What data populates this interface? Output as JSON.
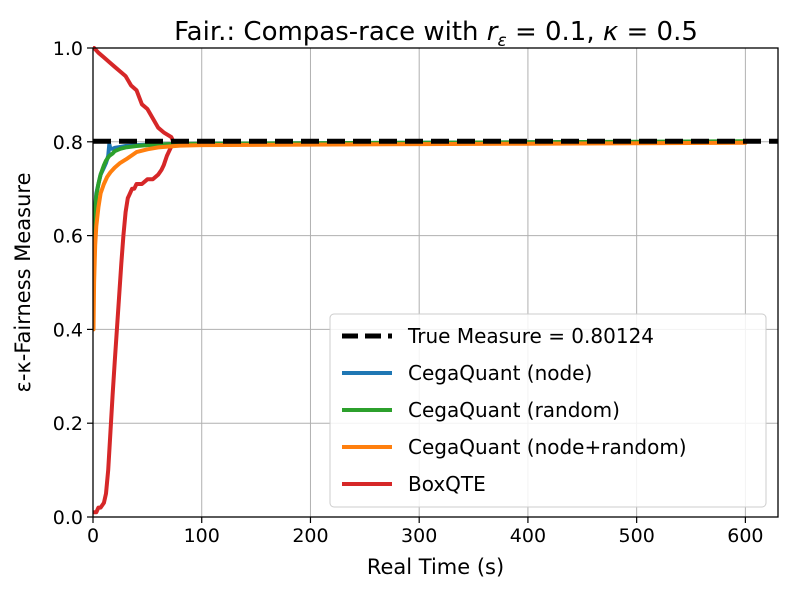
{
  "chart_data": {
    "type": "line",
    "title": "Fair.: Compas-race with r_ε = 0.1, κ = 0.5",
    "title_parts": {
      "prefix": "Fair.: Compas-race with ",
      "var1": "r",
      "var1_sub": "ε",
      "eq1": " = 0.1, ",
      "var2": "κ",
      "eq2": " = 0.5"
    },
    "xlabel": "Real Time (s)",
    "ylabel": "ε-κ-Fairness Measure",
    "xlim": [
      0,
      630
    ],
    "ylim": [
      0.0,
      1.0
    ],
    "x_ticks": [
      0,
      100,
      200,
      300,
      400,
      500,
      600
    ],
    "y_ticks": [
      0.0,
      0.2,
      0.4,
      0.6,
      0.8,
      1.0
    ],
    "x_tick_labels": [
      "0",
      "100",
      "200",
      "300",
      "400",
      "500",
      "600"
    ],
    "y_tick_labels": [
      "0.0",
      "0.2",
      "0.4",
      "0.6",
      "0.8",
      "1.0"
    ],
    "grid": true,
    "legend_position": "lower-right",
    "reference_line": {
      "name": "True Measure = 0.80124",
      "y": 0.80124,
      "color": "#000000",
      "style": "dashed"
    },
    "series": [
      {
        "name": "CegaQuant (node)",
        "color": "#1f77b4",
        "x": [
          0.5,
          1,
          2,
          3,
          5,
          7,
          10,
          12,
          14,
          15,
          16,
          18,
          20,
          25,
          30,
          40,
          50,
          70,
          100,
          200,
          300,
          400,
          500,
          600
        ],
        "y": [
          0.55,
          0.62,
          0.66,
          0.69,
          0.71,
          0.73,
          0.745,
          0.755,
          0.77,
          0.795,
          0.785,
          0.785,
          0.787,
          0.789,
          0.791,
          0.793,
          0.794,
          0.795,
          0.796,
          0.797,
          0.798,
          0.799,
          0.799,
          0.8
        ]
      },
      {
        "name": "CegaQuant (random)",
        "color": "#2ca02c",
        "x": [
          0.5,
          1,
          2,
          3,
          5,
          7,
          10,
          12,
          15,
          18,
          20,
          25,
          30,
          40,
          50,
          70,
          100,
          200,
          300,
          400,
          500,
          600
        ],
        "y": [
          0.55,
          0.61,
          0.655,
          0.685,
          0.71,
          0.73,
          0.75,
          0.76,
          0.77,
          0.775,
          0.78,
          0.785,
          0.788,
          0.791,
          0.793,
          0.795,
          0.796,
          0.797,
          0.798,
          0.799,
          0.8,
          0.801
        ]
      },
      {
        "name": "CegaQuant (node+random)",
        "color": "#ff7f0e",
        "x": [
          0.5,
          1,
          2,
          3,
          5,
          7,
          10,
          13,
          16,
          20,
          25,
          30,
          35,
          40,
          50,
          60,
          70,
          80,
          100,
          200,
          300,
          400,
          500,
          600
        ],
        "y": [
          0.4,
          0.5,
          0.58,
          0.62,
          0.66,
          0.69,
          0.71,
          0.725,
          0.735,
          0.745,
          0.755,
          0.762,
          0.77,
          0.778,
          0.784,
          0.788,
          0.79,
          0.792,
          0.793,
          0.794,
          0.795,
          0.796,
          0.797,
          0.798
        ]
      },
      {
        "name": "BoxQTE",
        "color": "#d62728",
        "x": [
          1,
          3,
          5,
          7,
          10,
          12,
          14,
          16,
          18,
          20,
          22,
          24,
          26,
          28,
          30,
          32,
          34,
          36,
          38,
          40,
          45,
          50,
          55,
          60,
          63,
          65,
          68,
          70,
          72,
          74,
          72,
          65,
          60,
          55,
          50,
          45,
          40,
          35,
          30,
          25,
          20,
          15,
          10,
          5,
          1
        ],
        "y": [
          0.01,
          0.01,
          0.02,
          0.02,
          0.03,
          0.05,
          0.1,
          0.18,
          0.26,
          0.33,
          0.4,
          0.47,
          0.54,
          0.6,
          0.65,
          0.68,
          0.69,
          0.7,
          0.7,
          0.71,
          0.71,
          0.72,
          0.72,
          0.73,
          0.74,
          0.75,
          0.77,
          0.78,
          0.79,
          0.8,
          0.81,
          0.82,
          0.83,
          0.85,
          0.87,
          0.88,
          0.91,
          0.92,
          0.94,
          0.95,
          0.96,
          0.97,
          0.98,
          0.99,
          1.0
        ]
      }
    ]
  }
}
